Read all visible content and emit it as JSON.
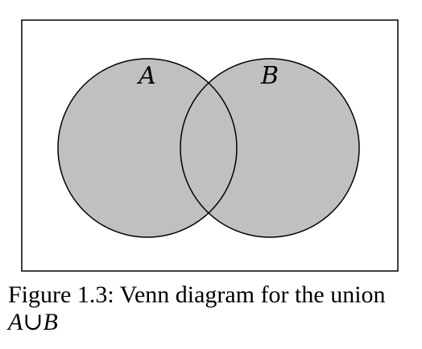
{
  "diagram": {
    "set_a_label": "A",
    "set_b_label": "B",
    "fill_color": "#c0c0c0",
    "stroke_color": "#000000",
    "background_color": "#ffffff"
  },
  "caption": {
    "line1": "Figure 1.3: Venn diagram for the union",
    "line2": "A∪B"
  }
}
